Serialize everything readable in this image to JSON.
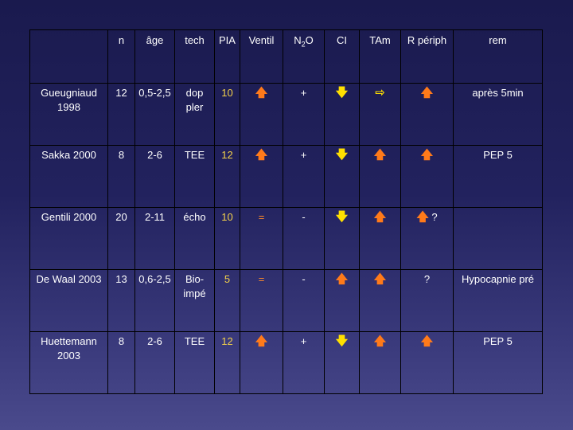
{
  "table": {
    "headers": {
      "study": "",
      "n": "n",
      "age": "âge",
      "tech": "tech",
      "pia": "PIA",
      "ventil": "Ventil",
      "n2o": "N",
      "n2o_sub": "2",
      "n2o_tail": "O",
      "ci": "CI",
      "tam": "TAm",
      "rperiph": "R périph",
      "rem": "rem"
    },
    "rows": [
      {
        "study": "Gueugniaud 1998",
        "n": "12",
        "age": "0,5-2,5",
        "tech": "dop pler",
        "pia": "10",
        "ventil": "up",
        "n2o": "+",
        "ci": "down",
        "tam": "right",
        "rperiph": "up",
        "rem": "après 5min"
      },
      {
        "study": "Sakka 2000",
        "n": "8",
        "age": "2-6",
        "tech": "TEE",
        "pia": "12",
        "ventil": "up",
        "n2o": "+",
        "ci": "down",
        "tam": "up",
        "rperiph": "up",
        "rem": "PEP 5"
      },
      {
        "study": "Gentili 2000",
        "n": "20",
        "age": "2-11",
        "tech": "écho",
        "pia": "10",
        "ventil": "=",
        "n2o": "-",
        "ci": "down",
        "tam": "up",
        "rperiph": "up ?",
        "rperiph_q": "?",
        "rem": ""
      },
      {
        "study": "De Waal 2003",
        "n": "13",
        "age": "0,6-2,5",
        "tech": "Bio-impé",
        "pia": "5",
        "ventil": "=",
        "n2o": "-",
        "ci": "up",
        "tam": "up",
        "rperiph": "?",
        "rem": "Hypocapnie pré"
      },
      {
        "study": "Huettemann 2003",
        "n": "8",
        "age": "2-6",
        "tech": "TEE",
        "pia": "12",
        "ventil": "up",
        "n2o": "+",
        "ci": "down",
        "tam": "up",
        "rperiph": "up",
        "rem": "PEP 5"
      }
    ]
  },
  "symbols": {
    "up": "🡅",
    "down": "🡇",
    "right": "⇨",
    "eq": "="
  },
  "colors": {
    "background_top": "#1a1a4e",
    "background_bottom": "#4a4a8c",
    "arrow_up": "#ff7a1a",
    "arrow_down": "#ffe000",
    "pia_value": "#f5d24a"
  }
}
